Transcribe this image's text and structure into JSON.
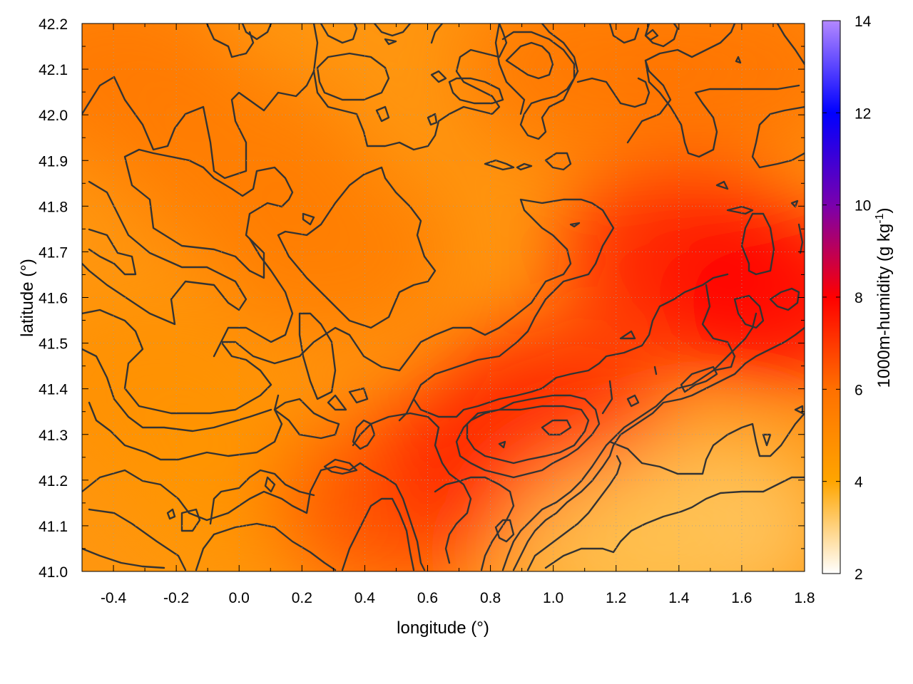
{
  "chart_data": {
    "type": "heatmap",
    "title": "",
    "xlabel": "longitude (°)",
    "ylabel": "latitude (°)",
    "xlim": [
      -0.5,
      1.8
    ],
    "ylim": [
      41.0,
      42.2
    ],
    "x_ticks": [
      "-0.4",
      "-0.2",
      "0.0",
      "0.2",
      "0.4",
      "0.6",
      "0.8",
      "1.0",
      "1.2",
      "1.4",
      "1.6",
      "1.8"
    ],
    "x_tick_values": [
      -0.4,
      -0.2,
      0.0,
      0.2,
      0.4,
      0.6,
      0.8,
      1.0,
      1.2,
      1.4,
      1.6,
      1.8
    ],
    "y_ticks": [
      "41.0",
      "41.1",
      "41.2",
      "41.3",
      "41.4",
      "41.5",
      "41.6",
      "41.7",
      "41.8",
      "41.9",
      "42.0",
      "42.1",
      "42.2"
    ],
    "y_tick_values": [
      41.0,
      41.1,
      41.2,
      41.3,
      41.4,
      41.5,
      41.6,
      41.7,
      41.8,
      41.9,
      42.0,
      42.1,
      42.2
    ],
    "grid": true,
    "colorbar": {
      "label_main": "1000m-humidity (g kg",
      "label_sup": "-1",
      "label_end": ")",
      "range": [
        2,
        14
      ],
      "ticks": [
        "2",
        "4",
        "6",
        "8",
        "10",
        "12",
        "14"
      ],
      "tick_values": [
        2,
        4,
        6,
        8,
        10,
        12,
        14
      ],
      "colors": [
        "#ffffff",
        "#ffa500",
        "#ff0000",
        "#0000ff",
        "#b388ff"
      ]
    },
    "field_samples": [
      {
        "x": -0.4,
        "y": 42.1,
        "v": 5.8
      },
      {
        "x": 0.0,
        "y": 41.9,
        "v": 5.6
      },
      {
        "x": 0.3,
        "y": 41.7,
        "v": 5.5
      },
      {
        "x": -0.3,
        "y": 41.4,
        "v": 4.8
      },
      {
        "x": 0.0,
        "y": 41.2,
        "v": 4.6
      },
      {
        "x": 0.5,
        "y": 41.15,
        "v": 6.6
      },
      {
        "x": 0.85,
        "y": 41.25,
        "v": 7.6
      },
      {
        "x": 1.0,
        "y": 41.35,
        "v": 7.2
      },
      {
        "x": 1.4,
        "y": 41.7,
        "v": 7.4
      },
      {
        "x": 1.7,
        "y": 41.6,
        "v": 8.0
      },
      {
        "x": 1.5,
        "y": 41.1,
        "v": 3.2
      },
      {
        "x": 1.2,
        "y": 41.05,
        "v": 3.4
      },
      {
        "x": 1.1,
        "y": 42.1,
        "v": 5.8
      },
      {
        "x": 1.6,
        "y": 42.1,
        "v": 5.9
      }
    ]
  }
}
